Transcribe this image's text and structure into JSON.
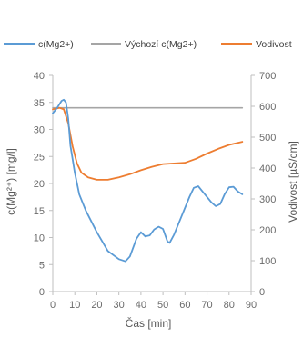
{
  "chart_data": {
    "type": "line",
    "xlabel": "Čas [min]",
    "ylabel_left": "c(Mg²⁺) [mg/l]",
    "ylabel_right": "Vodivost [µS/cm]",
    "xlim": [
      0,
      90
    ],
    "xticks": [
      0,
      10,
      20,
      30,
      40,
      50,
      60,
      70,
      80,
      90
    ],
    "ylim_left": [
      0,
      40
    ],
    "yticks_left": [
      0,
      5,
      10,
      15,
      20,
      25,
      30,
      35,
      40
    ],
    "ylim_right": [
      0,
      700
    ],
    "yticks_right": [
      0,
      100,
      200,
      300,
      400,
      500,
      600,
      700
    ],
    "grid": false,
    "legend_position": "top",
    "series": [
      {
        "name": "c(Mg2+)",
        "axis": "left",
        "color": "#5b9bd5",
        "points": [
          [
            0,
            33
          ],
          [
            2,
            34
          ],
          [
            4,
            35.3
          ],
          [
            5,
            35.5
          ],
          [
            6,
            35
          ],
          [
            7,
            32
          ],
          [
            8,
            27
          ],
          [
            10,
            22
          ],
          [
            12,
            18
          ],
          [
            15,
            15
          ],
          [
            20,
            11
          ],
          [
            25,
            7.5
          ],
          [
            30,
            6
          ],
          [
            33,
            5.6
          ],
          [
            35,
            6.5
          ],
          [
            38,
            9.8
          ],
          [
            40,
            11
          ],
          [
            42,
            10.2
          ],
          [
            44,
            10.4
          ],
          [
            46,
            11.5
          ],
          [
            48,
            12
          ],
          [
            50,
            11.6
          ],
          [
            52,
            9.3
          ],
          [
            53,
            9
          ],
          [
            55,
            10.5
          ],
          [
            58,
            13.5
          ],
          [
            62,
            17.5
          ],
          [
            64,
            19.2
          ],
          [
            66,
            19.5
          ],
          [
            68,
            18.5
          ],
          [
            72,
            16.5
          ],
          [
            74,
            15.8
          ],
          [
            76,
            16.2
          ],
          [
            78,
            18
          ],
          [
            80,
            19.3
          ],
          [
            82,
            19.4
          ],
          [
            84,
            18.5
          ],
          [
            86,
            18
          ]
        ]
      },
      {
        "name": "Výchozí c(Mg2+)",
        "axis": "left",
        "color": "#a5a5a5",
        "points": [
          [
            0,
            34
          ],
          [
            86,
            34
          ]
        ]
      },
      {
        "name": "Vodivost",
        "axis": "right",
        "color": "#ed7d31",
        "points": [
          [
            0,
            590
          ],
          [
            3,
            595
          ],
          [
            5,
            590
          ],
          [
            7,
            545
          ],
          [
            9,
            470
          ],
          [
            11,
            415
          ],
          [
            13,
            385
          ],
          [
            16,
            370
          ],
          [
            20,
            362
          ],
          [
            25,
            362
          ],
          [
            30,
            370
          ],
          [
            35,
            380
          ],
          [
            40,
            393
          ],
          [
            45,
            404
          ],
          [
            50,
            413
          ],
          [
            55,
            415
          ],
          [
            60,
            417
          ],
          [
            65,
            430
          ],
          [
            70,
            447
          ],
          [
            75,
            462
          ],
          [
            80,
            475
          ],
          [
            86,
            485
          ]
        ]
      }
    ]
  }
}
